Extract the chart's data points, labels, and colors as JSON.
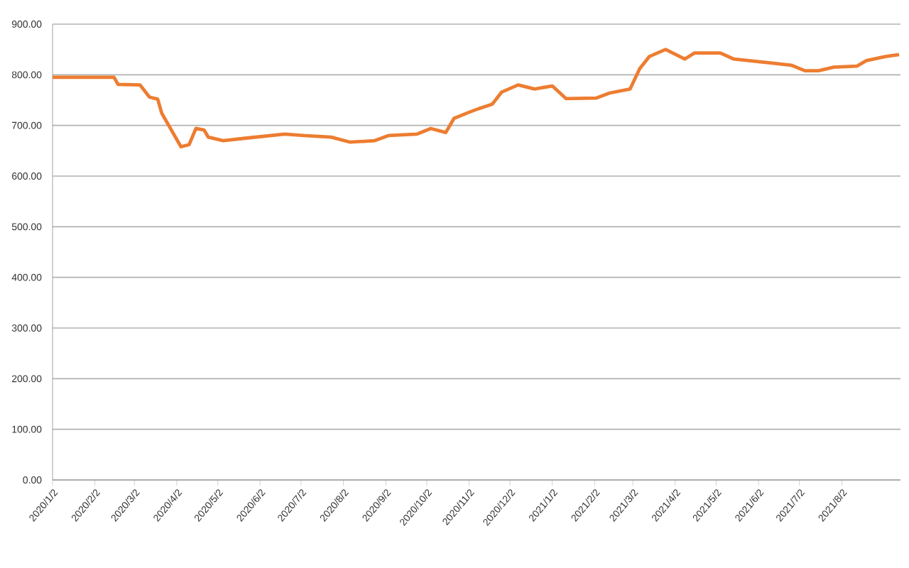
{
  "chart_data": {
    "type": "line",
    "x": [
      "2020-01-02",
      "2020-02-16",
      "2020-02-19",
      "2020-03-06",
      "2020-03-13",
      "2020-03-19",
      "2020-03-22",
      "2020-04-05",
      "2020-04-11",
      "2020-04-16",
      "2020-04-22",
      "2020-04-25",
      "2020-05-06",
      "2020-05-23",
      "2020-06-20",
      "2020-07-04",
      "2020-07-24",
      "2020-08-07",
      "2020-08-25",
      "2020-09-04",
      "2020-09-25",
      "2020-10-05",
      "2020-10-16",
      "2020-10-22",
      "2020-11-02",
      "2020-11-09",
      "2020-11-19",
      "2020-11-26",
      "2020-12-08",
      "2020-12-20",
      "2021-01-02",
      "2021-01-12",
      "2021-02-03",
      "2021-02-13",
      "2021-02-28",
      "2021-03-07",
      "2021-03-14",
      "2021-03-26",
      "2021-04-09",
      "2021-04-16",
      "2021-05-05",
      "2021-05-15",
      "2021-06-12",
      "2021-06-26",
      "2021-07-06",
      "2021-07-16",
      "2021-07-27",
      "2021-08-13",
      "2021-08-20",
      "2021-09-03",
      "2021-09-13"
    ],
    "series": [
      {
        "color": "#ed7d31",
        "values": [
          795,
          795,
          781,
          780,
          756,
          752,
          724,
          658,
          662,
          694,
          691,
          677,
          670,
          675,
          683,
          680,
          677,
          667,
          670,
          680,
          683,
          694,
          686,
          714,
          726,
          733,
          742,
          766,
          780,
          772,
          778,
          753,
          754,
          764,
          772,
          812,
          836,
          850,
          831,
          843,
          843,
          831,
          823,
          819,
          808,
          808,
          815,
          817,
          828,
          836,
          840
        ]
      }
    ],
    "xlim": [
      "2020-01-02",
      "2021-09-14"
    ],
    "xticks": [
      {
        "value": "2020-01-02",
        "label": "2020/1/2"
      },
      {
        "value": "2020-02-02",
        "label": "2020/2/2"
      },
      {
        "value": "2020-03-02",
        "label": "2020/3/2"
      },
      {
        "value": "2020-04-02",
        "label": "2020/4/2"
      },
      {
        "value": "2020-05-02",
        "label": "2020/5/2"
      },
      {
        "value": "2020-06-02",
        "label": "2020/6/2"
      },
      {
        "value": "2020-07-02",
        "label": "2020/7/2"
      },
      {
        "value": "2020-08-02",
        "label": "2020/8/2"
      },
      {
        "value": "2020-09-02",
        "label": "2020/9/2"
      },
      {
        "value": "2020-10-02",
        "label": "2020/10/2"
      },
      {
        "value": "2020-11-02",
        "label": "2020/11/2"
      },
      {
        "value": "2020-12-02",
        "label": "2020/12/2"
      },
      {
        "value": "2021-01-02",
        "label": "2021/1/2"
      },
      {
        "value": "2021-02-02",
        "label": "2021/2/2"
      },
      {
        "value": "2021-03-02",
        "label": "2021/3/2"
      },
      {
        "value": "2021-04-02",
        "label": "2021/4/2"
      },
      {
        "value": "2021-05-02",
        "label": "2021/5/2"
      },
      {
        "value": "2021-06-02",
        "label": "2021/6/2"
      },
      {
        "value": "2021-07-02",
        "label": "2021/7/2"
      },
      {
        "value": "2021-08-02",
        "label": "2021/8/2"
      }
    ],
    "ylim": [
      0,
      900
    ],
    "yticks": [
      {
        "value": 0,
        "label": "0.00"
      },
      {
        "value": 100,
        "label": "100.00"
      },
      {
        "value": 200,
        "label": "200.00"
      },
      {
        "value": 300,
        "label": "300.00"
      },
      {
        "value": 400,
        "label": "400.00"
      },
      {
        "value": 500,
        "label": "500.00"
      },
      {
        "value": 600,
        "label": "600.00"
      },
      {
        "value": 700,
        "label": "700.00"
      },
      {
        "value": 800,
        "label": "800.00"
      },
      {
        "value": 900,
        "label": "900.00"
      }
    ],
    "grid": "y",
    "marker": "none",
    "line_style": "solid"
  }
}
